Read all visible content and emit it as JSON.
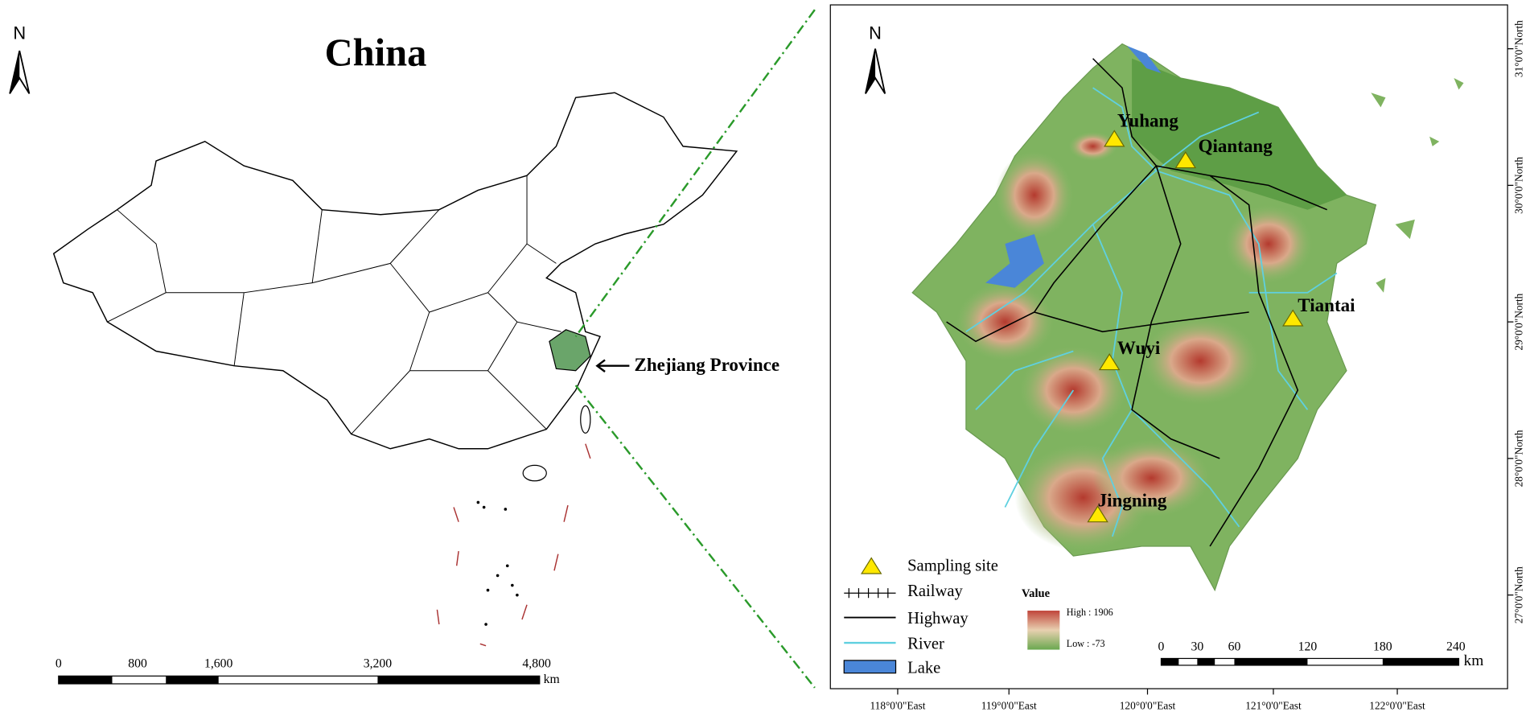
{
  "left_map": {
    "north": "N",
    "title": "China",
    "label": "Zhejiang Province",
    "scale": [
      "0",
      "800",
      "1,600",
      "3,200",
      "4,800"
    ],
    "scale_unit": "km"
  },
  "right_map": {
    "north": "N",
    "sites": [
      "Yuhang",
      "Qiantang",
      "Tiantai",
      "Wuyi",
      "Jingning"
    ],
    "legend": {
      "items": [
        "Sampling site",
        "Railway",
        "Highway",
        "River",
        "Lake"
      ],
      "value_title": "Value",
      "high": "High : 1906",
      "low": "Low : -73"
    },
    "scale": [
      "0",
      "30",
      "60",
      "120",
      "180",
      "240"
    ],
    "scale_unit": "km",
    "longitudes": [
      "118°0'0\"East",
      "119°0'0\"East",
      "120°0'0\"East",
      "121°0'0\"East",
      "122°0'0\"East"
    ],
    "latitudes": [
      "31°0'0\"North",
      "30°0'0\"North",
      "29°0'0\"North",
      "28°0'0\"North",
      "27°0'0\"North"
    ]
  }
}
